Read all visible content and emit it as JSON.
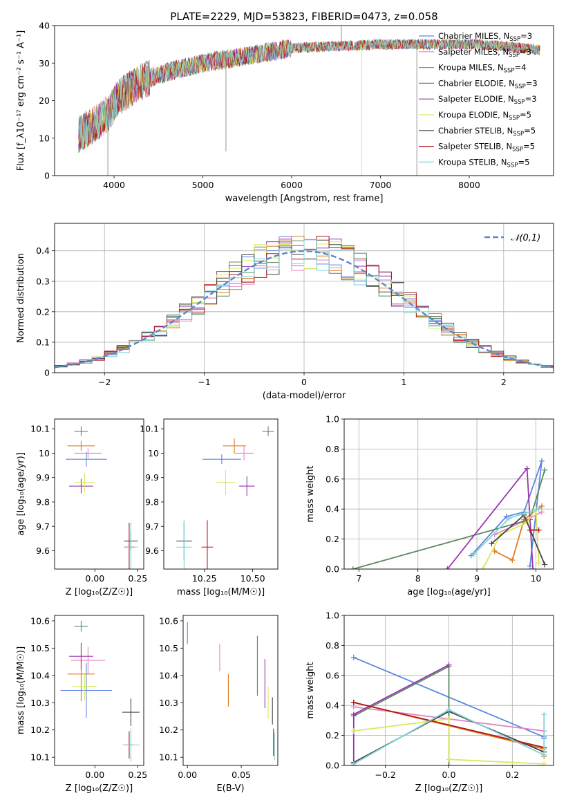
{
  "figure_title": "PLATE=2229, MJD=53823, FIBERID=0473, z=0.058",
  "models": [
    {
      "name": "Chabrier MILES",
      "nssp": "3",
      "color": "#5b86e0"
    },
    {
      "name": "Salpeter MILES",
      "nssp": "3",
      "color": "#e584c8"
    },
    {
      "name": "Kroupa MILES",
      "nssp": "4",
      "color": "#e07a1e"
    },
    {
      "name": "Chabrier ELODIE",
      "nssp": "3",
      "color": "#5a8a60"
    },
    {
      "name": "Salpeter ELODIE",
      "nssp": "3",
      "color": "#9a33b0"
    },
    {
      "name": "Kroupa ELODIE",
      "nssp": "5",
      "color": "#d8e85a"
    },
    {
      "name": "Chabrier STELIB",
      "nssp": "5",
      "color": "#444444"
    },
    {
      "name": "Salpeter STELIB",
      "nssp": "5",
      "color": "#b01818"
    },
    {
      "name": "Kroupa STELIB",
      "nssp": "5",
      "color": "#7fd4d6"
    }
  ],
  "chart_data": [
    {
      "id": "spectrum",
      "type": "line",
      "xlabel": "wavelength [Angstrom, rest frame]",
      "ylabel": "Flux [f_λ10⁻¹⁷ erg cm⁻² s⁻¹ A⁻¹]",
      "xlim": [
        3330,
        8950
      ],
      "ylim": [
        0,
        40
      ],
      "xticks": [
        4000,
        5000,
        6000,
        7000,
        8000
      ],
      "yticks": [
        0,
        10,
        20,
        30,
        40
      ],
      "continuum": {
        "x": [
          3600,
          3800,
          3950,
          4050,
          4300,
          4500,
          5000,
          5500,
          6000,
          6500,
          7000,
          7400,
          7800,
          8100,
          8400,
          8800
        ],
        "y": [
          11,
          14,
          17,
          21,
          25,
          27,
          30,
          32,
          34,
          34.5,
          35,
          35,
          35,
          35,
          34.5,
          33.5
        ]
      },
      "grid": false
    },
    {
      "id": "residuals",
      "type": "step",
      "xlabel": "(data-model)/error",
      "ylabel": "Normed distribution",
      "xlim": [
        -2.5,
        2.5
      ],
      "ylim": [
        0,
        0.49
      ],
      "xticks": [
        -2,
        -1,
        0,
        1,
        2
      ],
      "yticks": [
        0,
        0.1,
        0.2,
        0.3,
        0.4
      ],
      "legend": "𝒩(0,1)",
      "legend_position": "top-right",
      "grid": true,
      "bin_width": 0.125
    },
    {
      "id": "age_vs_Z",
      "type": "scatter",
      "xlabel": "Z [log₁₀(Z/Z☉)]",
      "ylabel": "age  [log₁₀(age/yr)]",
      "xlim": [
        -0.235,
        0.285
      ],
      "ylim": [
        9.525,
        10.14
      ],
      "xticks": [
        -0.25,
        0.0,
        0.25
      ],
      "xticklabels": [
        "",
        "0.00",
        "0.25"
      ],
      "yticks": [
        9.6,
        9.7,
        9.8,
        9.9,
        10.0,
        10.1
      ],
      "points": [
        {
          "x": -0.05,
          "y": 9.975,
          "xerr": 0.12,
          "yerr": 0.03
        },
        {
          "x": -0.04,
          "y": 10.0,
          "xerr": 0.08,
          "yerr": 0.02
        },
        {
          "x": -0.08,
          "y": 10.03,
          "xerr": 0.08,
          "yerr": 0.02
        },
        {
          "x": -0.08,
          "y": 10.09,
          "xerr": 0.04,
          "yerr": 0.02
        },
        {
          "x": -0.08,
          "y": 9.865,
          "xerr": 0.07,
          "yerr": 0.03
        },
        {
          "x": -0.06,
          "y": 9.88,
          "xerr": 0.06,
          "yerr": 0.04
        },
        {
          "x": 0.21,
          "y": 9.64,
          "xerr": 0.04,
          "yerr": 0.04
        },
        {
          "x": 0.2,
          "y": 9.615,
          "xerr": 0.03,
          "yerr": 0.1
        },
        {
          "x": 0.21,
          "y": 9.615,
          "xerr": 0.04,
          "yerr": 0.1
        }
      ]
    },
    {
      "id": "age_vs_mass",
      "type": "scatter",
      "xlabel": "mass [log₁₀(M/M☉)]",
      "ylabel": "",
      "xlim": [
        10.04,
        10.63
      ],
      "ylim": [
        9.525,
        10.14
      ],
      "xticks": [
        10.25,
        10.5
      ],
      "xticklabels": [
        "10.25",
        "10.50"
      ],
      "yticks": [
        9.6,
        9.7,
        9.8,
        9.9,
        10.0,
        10.1
      ],
      "points": [
        {
          "x": 10.34,
          "y": 9.975,
          "xerr": 0.1,
          "yerr": 0.02
        },
        {
          "x": 10.455,
          "y": 10.0,
          "xerr": 0.05,
          "yerr": 0.03
        },
        {
          "x": 10.405,
          "y": 10.03,
          "xerr": 0.06,
          "yerr": 0.03
        },
        {
          "x": 10.58,
          "y": 10.09,
          "xerr": 0.03,
          "yerr": 0.02
        },
        {
          "x": 10.47,
          "y": 9.865,
          "xerr": 0.04,
          "yerr": 0.04
        },
        {
          "x": 10.36,
          "y": 9.88,
          "xerr": 0.05,
          "yerr": 0.05
        },
        {
          "x": 10.145,
          "y": 9.64,
          "xerr": 0.04,
          "yerr": 0.08
        },
        {
          "x": 10.265,
          "y": 9.615,
          "xerr": 0.03,
          "yerr": 0.11
        },
        {
          "x": 10.145,
          "y": 9.615,
          "xerr": 0.04,
          "yerr": 0.11
        }
      ]
    },
    {
      "id": "weight_vs_age",
      "type": "line",
      "xlabel": "age  [log₁₀(age/yr)]",
      "ylabel": "mass weight",
      "xlim": [
        6.75,
        10.3
      ],
      "ylim": [
        0,
        1
      ],
      "xticks": [
        7,
        8,
        9,
        10
      ],
      "yticks": [
        0,
        0.2,
        0.4,
        0.6,
        0.8,
        1.0
      ],
      "yticklabels": [
        "0.0",
        "0.2",
        "0.4",
        "0.6",
        "0.8",
        "1.0"
      ],
      "grid": true,
      "series": [
        {
          "x": [
            8.9,
            9.5,
            9.8,
            10.1,
            9.9
          ],
          "y": [
            0.09,
            0.35,
            0.38,
            0.72,
            0.02
          ]
        },
        {
          "x": [
            9.3,
            9.8,
            10.1
          ],
          "y": [
            0.23,
            0.32,
            0.38
          ]
        },
        {
          "x": [
            9.3,
            9.6,
            9.8,
            10.1
          ],
          "y": [
            0.12,
            0.06,
            0.33,
            0.42
          ]
        },
        {
          "x": [
            6.9,
            9.9,
            10.15
          ],
          "y": [
            0.0,
            0.33,
            0.66
          ]
        },
        {
          "x": [
            8.5,
            9.85,
            9.95
          ],
          "y": [
            0.0,
            0.67,
            0.0
          ]
        },
        {
          "x": [
            9.1,
            9.4,
            9.85,
            10.0,
            10.05
          ],
          "y": [
            0.0,
            0.23,
            0.31,
            0.4,
            0.04
          ]
        },
        {
          "x": [
            9.25,
            9.8,
            10.15
          ],
          "y": [
            0.17,
            0.36,
            0.03
          ]
        },
        {
          "x": [
            9.9,
            10.05
          ],
          "y": [
            0.26,
            0.26
          ]
        },
        {
          "x": [
            8.95,
            9.55,
            9.8,
            10.05
          ],
          "y": [
            0.1,
            0.34,
            0.37,
            0.4
          ]
        }
      ]
    },
    {
      "id": "mass_vs_Z",
      "type": "scatter",
      "xlabel": "Z [log₁₀(Z/Z☉)]",
      "ylabel": "mass [log₁₀(M/M☉)]",
      "xlim": [
        -0.235,
        0.285
      ],
      "ylim": [
        10.07,
        10.62
      ],
      "xticks": [
        -0.25,
        0.0,
        0.25
      ],
      "xticklabels": [
        "",
        "0.00",
        "0.25"
      ],
      "yticks": [
        10.1,
        10.2,
        10.3,
        10.4,
        10.5,
        10.6
      ],
      "points": [
        {
          "x": -0.05,
          "y": 10.345,
          "xerr": 0.15,
          "yerr": 0.1
        },
        {
          "x": -0.04,
          "y": 10.455,
          "xerr": 0.1,
          "yerr": 0.05
        },
        {
          "x": -0.08,
          "y": 10.405,
          "xerr": 0.08,
          "yerr": 0.1
        },
        {
          "x": -0.08,
          "y": 10.58,
          "xerr": 0.04,
          "yerr": 0.02
        },
        {
          "x": -0.08,
          "y": 10.47,
          "xerr": 0.07,
          "yerr": 0.05
        },
        {
          "x": -0.06,
          "y": 10.36,
          "xerr": 0.07,
          "yerr": 0.05
        },
        {
          "x": 0.21,
          "y": 10.265,
          "xerr": 0.05,
          "yerr": 0.05
        },
        {
          "x": 0.2,
          "y": 10.145,
          "xerr": 0.03,
          "yerr": 0.05
        },
        {
          "x": 0.21,
          "y": 10.145,
          "xerr": 0.05,
          "yerr": 0.06
        }
      ]
    },
    {
      "id": "mass_vs_EBV",
      "type": "scatter",
      "xlabel": "E(B-V)",
      "ylabel": "",
      "xlim": [
        -0.004,
        0.084
      ],
      "ylim": [
        10.07,
        10.62
      ],
      "xticks": [
        0.0,
        0.05
      ],
      "xticklabels": [
        "0.00",
        "0.05"
      ],
      "yticks": [
        10.1,
        10.2,
        10.3,
        10.4,
        10.5,
        10.6
      ],
      "points": [
        {
          "x": 0.0,
          "y": 10.555,
          "xerr": 0,
          "yerr": 0.04
        },
        {
          "x": 0.03,
          "y": 10.465,
          "xerr": 0,
          "yerr": 0.05
        },
        {
          "x": 0.038,
          "y": 10.345,
          "xerr": 0,
          "yerr": 0.06
        },
        {
          "x": 0.065,
          "y": 10.435,
          "xerr": 0,
          "yerr": 0.11
        },
        {
          "x": 0.072,
          "y": 10.37,
          "xerr": 0,
          "yerr": 0.09
        },
        {
          "x": 0.075,
          "y": 10.3,
          "xerr": 0,
          "yerr": 0.06
        },
        {
          "x": 0.079,
          "y": 10.27,
          "xerr": 0,
          "yerr": 0.05
        },
        {
          "x": 0.08,
          "y": 10.155,
          "xerr": 0,
          "yerr": 0.05
        },
        {
          "x": 0.081,
          "y": 10.14,
          "xerr": 0,
          "yerr": 0.05
        }
      ]
    },
    {
      "id": "weight_vs_Z",
      "type": "line",
      "xlabel": "Z [log₁₀(Z/Z☉)]",
      "ylabel": "mass weight",
      "xlim": [
        -0.33,
        0.33
      ],
      "ylim": [
        0,
        1
      ],
      "xticks": [
        -0.2,
        0.0,
        0.2
      ],
      "xticklabels": [
        "−0.2",
        "0.0",
        "0.2"
      ],
      "yticks": [
        0,
        0.2,
        0.4,
        0.6,
        0.8,
        1.0
      ],
      "yticklabels": [
        "0.0",
        "0.2",
        "0.4",
        "0.6",
        "0.8",
        "1.0"
      ],
      "grid": true,
      "series": [
        {
          "x": [
            -0.3,
            0.3,
            0.3
          ],
          "y": [
            0.72,
            0.19,
            0.18
          ]
        },
        {
          "x": [
            -0.3,
            0.3
          ],
          "y": [
            0.39,
            0.23
          ]
        },
        {
          "x": [
            -0.3,
            0.3,
            0.3
          ],
          "y": [
            0.42,
            0.11,
            0.06
          ]
        },
        {
          "x": [
            -0.3,
            0.0,
            0.0
          ],
          "y": [
            0.33,
            0.66,
            0.0
          ]
        },
        {
          "x": [
            -0.3,
            -0.3,
            0.0
          ],
          "y": [
            0.0,
            0.34,
            0.67
          ]
        },
        {
          "x": [
            -0.3,
            0.0,
            0.0,
            0.3
          ],
          "y": [
            0.23,
            0.31,
            0.04,
            0.01
          ]
        },
        {
          "x": [
            -0.3,
            0.0,
            0.3
          ],
          "y": [
            0.02,
            0.36,
            0.09
          ]
        },
        {
          "x": [
            -0.3,
            0.3
          ],
          "y": [
            0.42,
            0.12
          ]
        },
        {
          "x": [
            -0.3,
            0.0,
            0.3,
            0.3
          ],
          "y": [
            0.01,
            0.37,
            0.07,
            0.34
          ]
        }
      ]
    }
  ]
}
